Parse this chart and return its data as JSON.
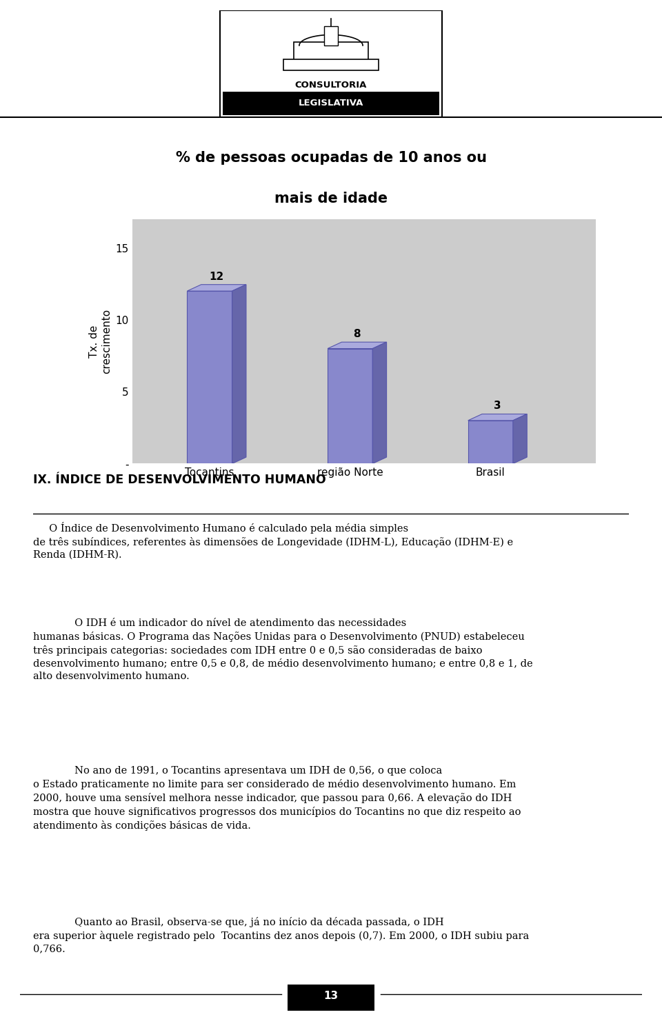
{
  "title_line1": "% de pessoas ocupadas de 10 anos ou",
  "title_line2": "mais de idade",
  "categories": [
    "Tocantins",
    "região Norte",
    "Brasil"
  ],
  "values": [
    12,
    8,
    3
  ],
  "bar_front_color": "#8888cc",
  "bar_top_color": "#aaaadd",
  "bar_side_color": "#6666aa",
  "bar_edge_color": "#5555aa",
  "ylabel": "Tx. de\ncrescimento",
  "ytick_labels": [
    "-",
    "5",
    "10",
    "15"
  ],
  "ytick_vals": [
    0,
    5,
    10,
    15
  ],
  "section_title": "IX. ÍNDICE DE DESENVOLVIMENTO HUMANO",
  "para1_indent": "     O Índice de Desenvolvimento Humano é calculado pela média simples\nde três subíndices, referentes às dimensões de Longevidade (IDHM-L), Educação (IDHM-E) e\nRenda (IDHM-R).",
  "para2_line1": "             O IDH é um indicador do nível de atendimento das necessidades",
  "para2_rest": "humanas básicas. O Programa das Nações Unidas para o Desenvolvimento (PNUD) estabeleceu\ntrês principais categorias: sociedades com IDH entre 0 e 0,5 são consideradas de baixo\ndesenvolvimento humano; entre 0,5 e 0,8, de médio desenvolvimento humano; e entre 0,8 e 1, de\nalto desenvolvimento humano.",
  "para3_line1": "             No ano de 1991, o Tocantins apresentava um IDH de 0,56, o que coloca",
  "para3_rest": "o Estado praticamente no limite para ser considerado de médio desenvolvimento humano. Em\n2000, houve uma sensível melhora nesse indicador, que passou para 0,66. A elevação do IDH\nmostra que houve significativos progressos dos municípios do Tocantins no que diz respeito ao\natendimento às condições básicas de vida.",
  "para4_line1": "             Quanto ao Brasil, observa-se que, já no início da década passada, o IDH",
  "para4_rest": "era superior àquele registrado pelo  Tocantins dez anos depois (0,7). Em 2000, o IDH subiu para\n0,766.",
  "page_number": "13",
  "bg_color": "#ffffff",
  "chart_bg_color": "#cccccc",
  "logo_text1": "CONSULTORIA",
  "logo_text2": "LEGISLATIVA"
}
